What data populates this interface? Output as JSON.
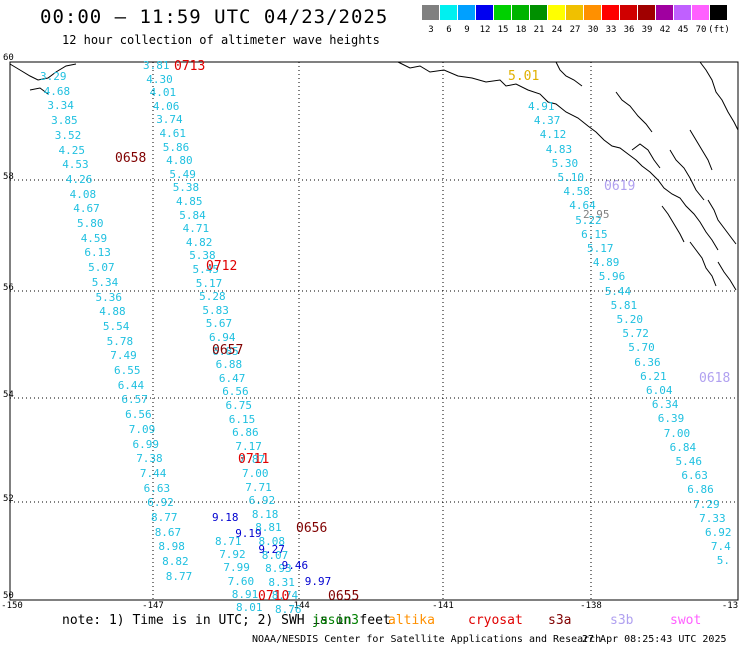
{
  "header": {
    "title": "00:00 — 11:59 UTC 04/23/2025",
    "subtitle": "12 hour collection of altimeter wave heights"
  },
  "legend": {
    "colors": [
      "#808080",
      "#00f0f0",
      "#00a0ff",
      "#0000f0",
      "#00d000",
      "#00b400",
      "#009000",
      "#ffff00",
      "#f0c000",
      "#ff9000",
      "#ff0000",
      "#d00000",
      "#a00000",
      "#a000a0",
      "#c060ff",
      "#ff60ff",
      "#000000"
    ],
    "labels": [
      "3",
      "6",
      "9",
      "12",
      "15",
      "18",
      "21",
      "24",
      "27",
      "30",
      "33",
      "36",
      "39",
      "42",
      "45",
      "70",
      "(ft)"
    ]
  },
  "axes": {
    "lat_labels": [
      "60",
      "58",
      "56",
      "54",
      "52",
      "50"
    ],
    "lon_labels": [
      "-150",
      "-147",
      "-144",
      "-141",
      "-138",
      "-13"
    ]
  },
  "track_times": [
    {
      "text": "0713",
      "color": "#e00000"
    },
    {
      "text": "0658",
      "color": "#800000"
    },
    {
      "text": "0712",
      "color": "#e00000"
    },
    {
      "text": "0657",
      "color": "#800000"
    },
    {
      "text": "0711",
      "color": "#e00000"
    },
    {
      "text": "0656",
      "color": "#800000"
    },
    {
      "text": "0710",
      "color": "#e00000"
    },
    {
      "text": "0655",
      "color": "#800000"
    },
    {
      "text": "0619",
      "color": "#b0a0f0"
    },
    {
      "text": "0618",
      "color": "#b0a0f0"
    },
    {
      "text": "5.01",
      "color": "#e0b000"
    }
  ],
  "tracks": [
    {
      "color": "#20c0e0",
      "values": [
        "3.29",
        "4.68",
        "3.34",
        "3.85",
        "3.52",
        "4.25",
        "4.53",
        "4.26",
        "4.08",
        "4.67",
        "5.80",
        "4.59",
        "6.13",
        "5.07",
        "5.34",
        "5.36",
        "4.88",
        "5.54",
        "5.78",
        "7.49",
        "6.55",
        "6.44",
        "6.57",
        "6.56",
        "7.09",
        "6.99",
        "7.38",
        "7.44",
        "6.63",
        "6.92",
        "8.77",
        "8.67",
        "8.98",
        "8.82",
        "8.77"
      ]
    },
    {
      "color": "#20c0e0",
      "values": [
        "3.81",
        "4.30",
        "4.01",
        "4.06",
        "3.74",
        "4.61",
        "5.86",
        "4.80",
        "5.49",
        "5.38",
        "4.85",
        "5.84",
        "4.71",
        "4.82",
        "5.38",
        "5.45",
        "5.17",
        "5.28",
        "5.83",
        "5.67",
        "6.94",
        "6.85",
        "6.88",
        "6.47",
        "6.56",
        "6.75",
        "6.15",
        "6.86",
        "7.17",
        "7.87",
        "7.00",
        "7.71",
        "6.92",
        "8.18",
        "8.81",
        "8.08",
        "8.07",
        "8.93",
        "8.31",
        "8.74",
        "8.76"
      ]
    },
    {
      "color": "#0000d0",
      "values": [
        "9.18",
        "9.19",
        "9.27",
        "9.46",
        "9.97"
      ]
    },
    {
      "color": "#20c0e0",
      "values": [
        "8.71",
        "7.92",
        "7.99",
        "7.60",
        "8.91",
        "8.01"
      ]
    },
    {
      "color": "#20c0e0",
      "values": [
        "4.91",
        "4.37",
        "4.12",
        "4.83",
        "5.30",
        "5.10",
        "4.58",
        "4.64",
        "5.22",
        "6.15",
        "5.17",
        "4.89",
        "5.96",
        "5.44",
        "5.81",
        "5.20",
        "5.72",
        "5.70",
        "6.36",
        "6.21",
        "6.04",
        "6.34",
        "6.39",
        "7.00",
        "6.84",
        "5.46",
        "6.63",
        "6.86",
        "7.29",
        "7.33",
        "6.92",
        "7.4",
        "5."
      ]
    },
    {
      "color": "#808080",
      "values": [
        "2.95"
      ]
    }
  ],
  "footer": {
    "note": "note: 1) Time is in UTC; 2) SWH is in feet",
    "satellites": [
      {
        "name": "jason3",
        "color": "#008000"
      },
      {
        "name": "altika",
        "color": "#ff9000"
      },
      {
        "name": "cryosat",
        "color": "#e00000"
      },
      {
        "name": "s3a",
        "color": "#800000"
      },
      {
        "name": "s3b",
        "color": "#b0a0f0"
      },
      {
        "name": "swot",
        "color": "#ff60ff"
      }
    ],
    "credit": "NOAA/NESDIS Center for Satellite Applications and Research",
    "timestamp": "27 Apr 08:25:43 UTC 2025"
  }
}
